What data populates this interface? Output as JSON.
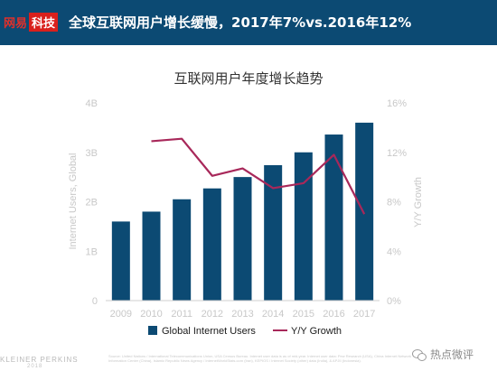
{
  "header": {
    "brand_part1": "网易",
    "brand_part2": "科技",
    "headline": "全球互联网用户增长缓慢，2017年7%vs.2016年12%"
  },
  "chart_data": {
    "type": "bar",
    "title": "互联网用户年度增长趋势",
    "categories": [
      "2009",
      "2010",
      "2011",
      "2012",
      "2013",
      "2014",
      "2015",
      "2016",
      "2017"
    ],
    "series": [
      {
        "name": "Global Internet Users",
        "kind": "bar",
        "axis": "left",
        "color": "#0c4a73",
        "values": [
          1.6,
          1.8,
          2.05,
          2.27,
          2.5,
          2.74,
          3.0,
          3.36,
          3.6
        ]
      },
      {
        "name": "Y/Y Growth",
        "kind": "line",
        "axis": "right",
        "color": "#a8285a",
        "values": [
          null,
          12.9,
          13.1,
          10.1,
          10.7,
          9.1,
          9.5,
          11.8,
          7.0
        ]
      }
    ],
    "ylabel": "Internet Users, Global",
    "y2label": "Y/Y Growth",
    "ylim": [
      0,
      4
    ],
    "y2lim": [
      0,
      16
    ],
    "yticks": [
      "0",
      "1B",
      "2B",
      "3B",
      "4B"
    ],
    "y2ticks": [
      "0%",
      "4%",
      "8%",
      "12%",
      "16%"
    ],
    "legend_position": "bottom",
    "grid": false
  },
  "footer": {
    "brand": "KLEINER PERKINS",
    "year": "2018",
    "source": "Source: United Nations / International Telecommunications Union, USA Census Bureau. Internet user data is as of mid-year. Internet user data: Pew Research (USA), China Internet Network Information Center (China), Islamic Republic News Agency / InternetWorldStats.com (Iran), KEPIOS / Internet Society (other) data (India), & APJII (Indonesia)."
  },
  "watermark": {
    "text": "热点微评"
  },
  "colors": {
    "header_bg": "#0c4a73",
    "bar": "#0c4a73",
    "line": "#a8285a",
    "axis_text": "#c8c8c8"
  }
}
